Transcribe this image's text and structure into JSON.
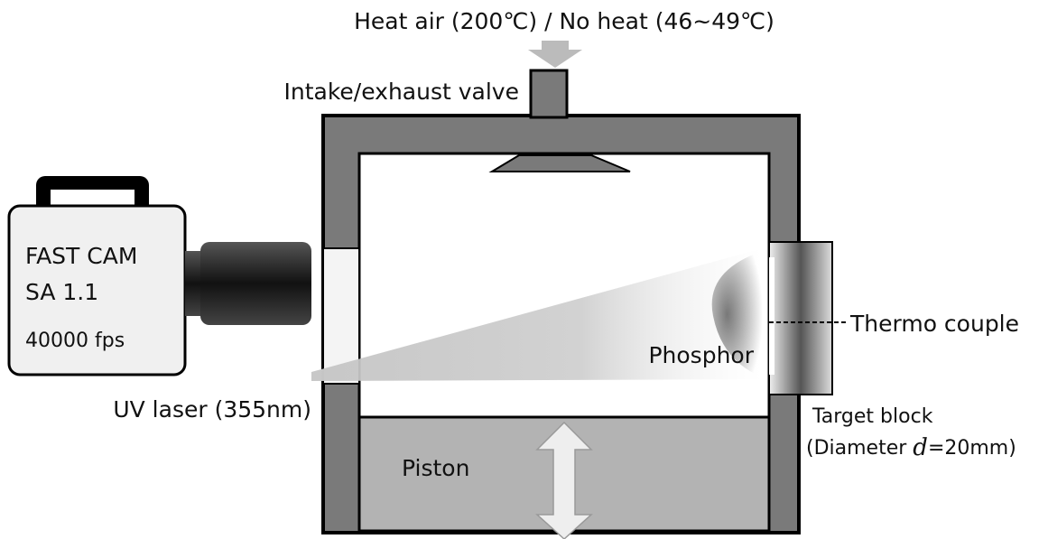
{
  "title": "Heat air (200℃) / No heat (46~49℃)",
  "labels": {
    "valve": "Intake/exhaust valve",
    "camera": [
      "FAST CAM",
      "SA 1.1",
      "40000 fps"
    ],
    "laser": "UV laser (355nm)",
    "phosphor": "Phosphor",
    "thermocouple": "Thermo couple",
    "piston": "Piston",
    "target": "Target block",
    "diameter": [
      "(Diameter ",
      "d",
      "=20mm)"
    ]
  }
}
